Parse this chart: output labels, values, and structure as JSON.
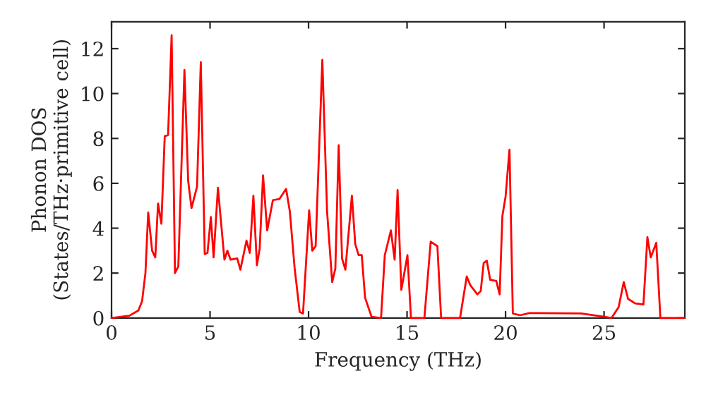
{
  "chart_data": {
    "type": "line",
    "xlabel": "Frequency (THz)",
    "ylabel": "Phonon DOS\n(States/THz·primitive cell)",
    "xlim": [
      0,
      29.1
    ],
    "ylim": [
      0,
      13.2
    ],
    "xticks": [
      0,
      5,
      10,
      15,
      20,
      25
    ],
    "yticks": [
      0,
      2,
      4,
      6,
      8,
      10,
      12
    ],
    "grid": false,
    "marker": "none",
    "line_style": "solid",
    "series": [
      {
        "color": "#ff0000",
        "x": [
          0,
          0.9,
          1.36,
          1.55,
          1.72,
          1.86,
          2.06,
          2.22,
          2.36,
          2.53,
          2.7,
          2.87,
          3.05,
          3.22,
          3.39,
          3.7,
          3.89,
          4.06,
          4.34,
          4.53,
          4.73,
          4.87,
          5.04,
          5.18,
          5.4,
          5.73,
          5.88,
          6.04,
          6.38,
          6.54,
          6.85,
          7.02,
          7.2,
          7.38,
          7.52,
          7.69,
          7.9,
          8.19,
          8.52,
          8.86,
          9.05,
          9.29,
          9.55,
          9.72,
          10.03,
          10.19,
          10.36,
          10.7,
          10.94,
          11.2,
          11.36,
          11.53,
          11.7,
          11.87,
          12.2,
          12.37,
          12.54,
          12.7,
          12.87,
          13.2,
          13.68,
          13.87,
          14.18,
          14.37,
          14.52,
          14.71,
          15.02,
          15.2,
          15.88,
          16.2,
          16.54,
          16.73,
          17.69,
          18.03,
          18.22,
          18.57,
          18.74,
          18.89,
          19.05,
          19.22,
          19.53,
          19.7,
          19.84,
          20.0,
          20.2,
          20.37,
          20.73,
          21.2,
          23.83,
          25.02,
          25.38,
          25.74,
          26.0,
          26.22,
          26.58,
          27.0,
          27.2,
          27.37,
          27.65,
          27.86,
          29.07
        ],
        "values": [
          0,
          0.1,
          0.33,
          0.75,
          2.0,
          4.7,
          3.0,
          2.7,
          5.1,
          4.2,
          8.1,
          8.15,
          12.6,
          2.0,
          2.3,
          11.05,
          6.1,
          4.9,
          5.85,
          11.4,
          2.85,
          2.9,
          4.5,
          2.7,
          5.8,
          2.6,
          3.0,
          2.6,
          2.65,
          2.15,
          3.45,
          2.9,
          5.45,
          2.35,
          3.1,
          6.35,
          3.9,
          5.25,
          5.3,
          5.75,
          4.75,
          2.25,
          0.27,
          0.2,
          4.8,
          3.0,
          3.2,
          11.5,
          4.75,
          1.6,
          2.2,
          7.7,
          2.65,
          2.15,
          5.45,
          3.3,
          2.8,
          2.8,
          0.9,
          0.05,
          0,
          2.8,
          3.9,
          2.6,
          5.7,
          1.25,
          2.8,
          0,
          0,
          3.4,
          3.2,
          0,
          0,
          1.85,
          1.45,
          1.05,
          1.2,
          2.45,
          2.55,
          1.7,
          1.65,
          1.05,
          4.55,
          5.4,
          7.5,
          0.2,
          0.12,
          0.22,
          0.2,
          0.05,
          0,
          0.48,
          1.6,
          0.85,
          0.65,
          0.6,
          3.6,
          2.7,
          3.35,
          0,
          0
        ]
      }
    ]
  }
}
